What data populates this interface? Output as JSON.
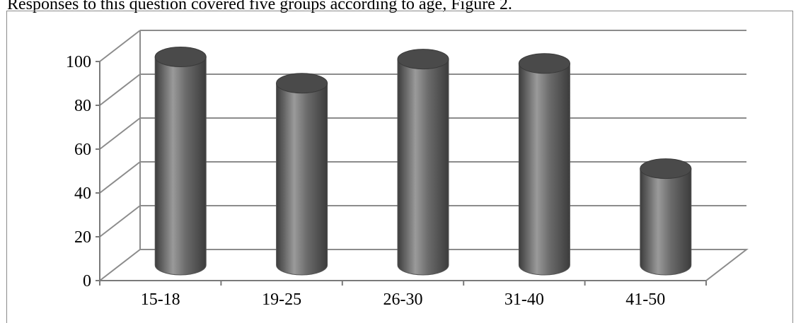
{
  "caption": "Responses to this question covered five groups according to age, Figure 2.",
  "chart_data": {
    "type": "bar",
    "style": "3d-cylinder",
    "categories": [
      "15-18",
      "19-25",
      "26-30",
      "31-40",
      "41-50"
    ],
    "values": [
      95,
      83,
      94,
      92,
      44
    ],
    "ylim": [
      0,
      100
    ],
    "yticks": [
      0,
      20,
      40,
      60,
      80,
      100
    ],
    "title": "",
    "xlabel": "",
    "ylabel": "",
    "grid": true,
    "legend": "none",
    "colors": {
      "bar": "#6b6b6b",
      "bar_dark": "#3c3c3c",
      "bar_light": "#9a9a9a",
      "grid": "#8c8c8c"
    }
  }
}
